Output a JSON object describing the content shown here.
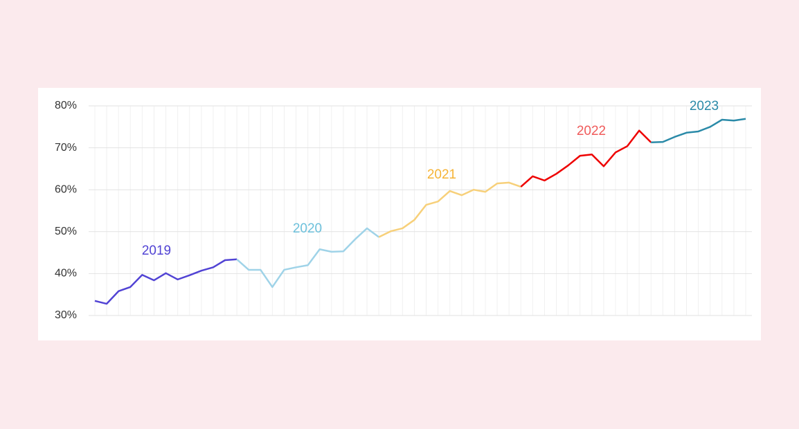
{
  "chart_data": {
    "type": "line",
    "categories": [
      null,
      null,
      null,
      null,
      null,
      null,
      null,
      null,
      null,
      null,
      null,
      null,
      null,
      null,
      null,
      null,
      null,
      null,
      null,
      null,
      null,
      null,
      null,
      null,
      null,
      null,
      null,
      null,
      null,
      null,
      null,
      null,
      null,
      null,
      null,
      null,
      null,
      null,
      null,
      null,
      null,
      null,
      null,
      null,
      null,
      null,
      null,
      null,
      null,
      null,
      null,
      null,
      null,
      null,
      null,
      null
    ],
    "ylim": [
      30,
      80
    ],
    "yticks": [
      {
        "value": 30,
        "label": "30%"
      },
      {
        "value": 40,
        "label": "40%"
      },
      {
        "value": 50,
        "label": "50%"
      },
      {
        "value": 60,
        "label": "60%"
      },
      {
        "value": 70,
        "label": "70%"
      },
      {
        "value": 80,
        "label": "80%"
      }
    ],
    "grid": true,
    "series": [
      {
        "name": "2019",
        "color": "#5143d4",
        "label_color": "#5143d4",
        "values": [
          33.5,
          32.8,
          35.8,
          36.8,
          39.7,
          38.4,
          40.1,
          38.6,
          39.6,
          40.7,
          41.5,
          43.2,
          43.4,
          null,
          null,
          null,
          null,
          null,
          null,
          null,
          null,
          null,
          null,
          null,
          null,
          null,
          null,
          null,
          null,
          null,
          null,
          null,
          null,
          null,
          null,
          null,
          null,
          null,
          null,
          null,
          null,
          null,
          null,
          null,
          null,
          null,
          null,
          null,
          null,
          null,
          null,
          null,
          null,
          null,
          null,
          null
        ]
      },
      {
        "name": "2020",
        "color": "#9fd3e8",
        "label_color": "#6cc0db",
        "values": [
          null,
          null,
          null,
          null,
          null,
          null,
          null,
          null,
          null,
          null,
          null,
          null,
          43.4,
          40.9,
          40.9,
          36.8,
          40.9,
          41.5,
          42.0,
          45.8,
          45.2,
          45.3,
          48.2,
          50.8,
          48.7,
          null,
          null,
          null,
          null,
          null,
          null,
          null,
          null,
          null,
          null,
          null,
          null,
          null,
          null,
          null,
          null,
          null,
          null,
          null,
          null,
          null,
          null,
          null,
          null,
          null,
          null,
          null,
          null,
          null,
          null,
          null
        ]
      },
      {
        "name": "2021",
        "color": "#f7d07a",
        "label_color": "#f5b335",
        "values": [
          null,
          null,
          null,
          null,
          null,
          null,
          null,
          null,
          null,
          null,
          null,
          null,
          null,
          null,
          null,
          null,
          null,
          null,
          null,
          null,
          null,
          null,
          null,
          null,
          48.7,
          50.1,
          50.8,
          52.8,
          56.4,
          57.2,
          59.7,
          58.7,
          60.0,
          59.5,
          61.5,
          61.7,
          60.7,
          null,
          null,
          null,
          null,
          null,
          null,
          null,
          null,
          null,
          null,
          null,
          null,
          null,
          null,
          null,
          null,
          null,
          null,
          null
        ]
      },
      {
        "name": "2022",
        "color": "#ee0000",
        "label_color": "#f05a5a",
        "values": [
          null,
          null,
          null,
          null,
          null,
          null,
          null,
          null,
          null,
          null,
          null,
          null,
          null,
          null,
          null,
          null,
          null,
          null,
          null,
          null,
          null,
          null,
          null,
          null,
          null,
          null,
          null,
          null,
          null,
          null,
          null,
          null,
          null,
          null,
          null,
          null,
          60.7,
          63.2,
          62.2,
          63.8,
          65.8,
          68.1,
          68.4,
          65.6,
          68.9,
          70.4,
          74.1,
          71.3,
          null,
          null,
          null,
          null,
          null,
          null,
          null,
          null
        ]
      },
      {
        "name": "2023",
        "color": "#2a8aa8",
        "label_color": "#2a8aa8",
        "values": [
          null,
          null,
          null,
          null,
          null,
          null,
          null,
          null,
          null,
          null,
          null,
          null,
          null,
          null,
          null,
          null,
          null,
          null,
          null,
          null,
          null,
          null,
          null,
          null,
          null,
          null,
          null,
          null,
          null,
          null,
          null,
          null,
          null,
          null,
          null,
          null,
          null,
          null,
          null,
          null,
          null,
          null,
          null,
          null,
          null,
          null,
          null,
          71.3,
          71.4,
          72.6,
          73.6,
          73.9,
          75.0,
          76.7,
          76.5,
          76.9
        ]
      }
    ]
  }
}
